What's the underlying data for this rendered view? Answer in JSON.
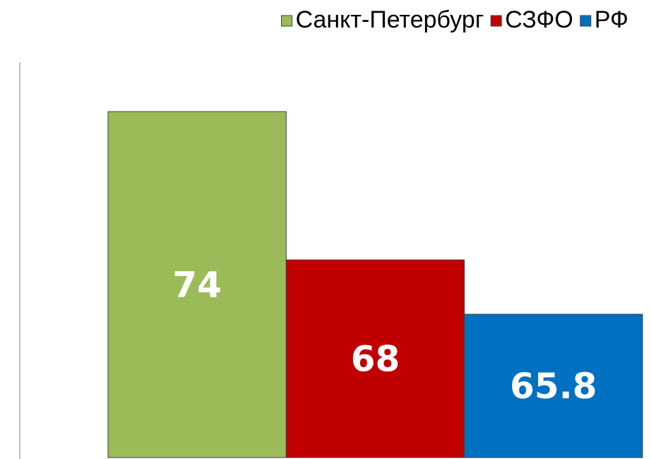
{
  "chart_data": {
    "type": "bar",
    "categories": [
      null
    ],
    "series": [
      {
        "name": "Санкт-Петербург",
        "color": "#9bbb59",
        "values": [
          74
        ]
      },
      {
        "name": "СЗФО",
        "color": "#c00000",
        "values": [
          68
        ]
      },
      {
        "name": "РФ",
        "color": "#0070c0",
        "values": [
          65.8
        ]
      }
    ],
    "ylim": [
      60,
      76
    ],
    "legend": "top-right"
  }
}
